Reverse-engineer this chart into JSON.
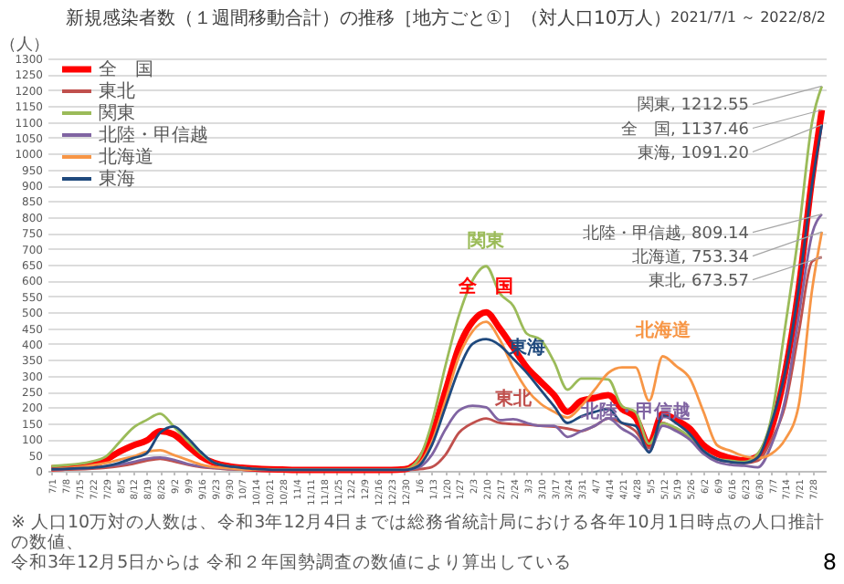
{
  "chart_data": {
    "type": "line",
    "title": "新規感染者数（１週間移動合計）の推移［地方ごと①］（対人口10万人）",
    "subtitle": "2021/7/1 ～ 2022/8/2",
    "ylabel": "（人）",
    "x": [
      "2021-07-01",
      "2021-07-08",
      "2021-07-15",
      "2021-07-22",
      "2021-07-29",
      "2021-08-05",
      "2021-08-12",
      "2021-08-19",
      "2021-08-26",
      "2021-09-02",
      "2021-09-09",
      "2021-09-16",
      "2021-09-23",
      "2021-09-30",
      "2021-10-07",
      "2021-10-14",
      "2021-10-21",
      "2021-10-28",
      "2021-11-04",
      "2021-11-11",
      "2021-11-18",
      "2021-11-25",
      "2021-12-02",
      "2021-12-09",
      "2021-12-16",
      "2021-12-23",
      "2021-12-30",
      "2022-01-06",
      "2022-01-13",
      "2022-01-20",
      "2022-01-27",
      "2022-02-03",
      "2022-02-10",
      "2022-02-17",
      "2022-02-24",
      "2022-03-03",
      "2022-03-10",
      "2022-03-17",
      "2022-03-24",
      "2022-03-31",
      "2022-04-07",
      "2022-04-14",
      "2022-04-21",
      "2022-04-28",
      "2022-05-05",
      "2022-05-12",
      "2022-05-19",
      "2022-05-26",
      "2022-06-02",
      "2022-06-09",
      "2022-06-16",
      "2022-06-23",
      "2022-06-30",
      "2022-07-07",
      "2022-07-14",
      "2022-07-21",
      "2022-07-28",
      "2022-08-02"
    ],
    "series": [
      {
        "name": "全　国",
        "color": "#ff0000",
        "values": [
          8,
          10,
          14,
          20,
          35,
          60,
          80,
          95,
          125,
          115,
          80,
          45,
          25,
          15,
          10,
          7,
          5,
          4,
          3,
          3,
          3,
          3,
          3,
          3,
          3,
          3,
          5,
          30,
          110,
          250,
          390,
          470,
          500,
          449,
          388,
          326,
          282,
          239,
          186,
          221,
          230,
          239,
          195,
          168,
          85,
          180,
          160,
          133,
          81,
          54,
          40,
          33,
          46,
          133,
          309,
          572,
          923,
          1137.46
        ]
      },
      {
        "name": "東北",
        "color": "#c0504d",
        "values": [
          3,
          4,
          5,
          7,
          10,
          15,
          22,
          32,
          38,
          30,
          20,
          12,
          8,
          5,
          4,
          3,
          3,
          3,
          3,
          3,
          3,
          3,
          3,
          3,
          3,
          3,
          3,
          5,
          12,
          50,
          120,
          150,
          165,
          151,
          147,
          146,
          142,
          139,
          133,
          125,
          142,
          165,
          151,
          125,
          72,
          151,
          130,
          107,
          63,
          37,
          28,
          25,
          32,
          98,
          204,
          432,
          660,
          673.57
        ]
      },
      {
        "name": "関東",
        "color": "#9bbb59",
        "values": [
          15,
          18,
          22,
          30,
          45,
          90,
          135,
          160,
          180,
          140,
          95,
          55,
          25,
          15,
          10,
          6,
          5,
          4,
          4,
          4,
          4,
          4,
          4,
          4,
          4,
          4,
          5,
          35,
          150,
          330,
          490,
          600,
          645,
          560,
          520,
          432,
          414,
          344,
          256,
          291,
          291,
          288,
          204,
          186,
          85,
          150,
          135,
          107,
          63,
          37,
          32,
          28,
          54,
          168,
          449,
          747,
          1100,
          1212.55
        ]
      },
      {
        "name": "北陸・甲信越",
        "color": "#8064a2",
        "values": [
          5,
          6,
          8,
          10,
          15,
          20,
          28,
          38,
          42,
          35,
          22,
          14,
          10,
          6,
          5,
          4,
          3,
          3,
          3,
          3,
          3,
          3,
          3,
          3,
          3,
          3,
          3,
          10,
          50,
          130,
          190,
          205,
          200,
          160,
          163,
          151,
          142,
          142,
          107,
          125,
          142,
          165,
          133,
          107,
          63,
          142,
          125,
          98,
          54,
          28,
          19,
          16,
          11,
          81,
          221,
          484,
          747,
          809.14
        ]
      },
      {
        "name": "北海道",
        "color": "#f79646",
        "values": [
          5,
          8,
          12,
          18,
          25,
          35,
          45,
          60,
          65,
          50,
          35,
          20,
          12,
          8,
          5,
          4,
          4,
          3,
          3,
          3,
          3,
          3,
          3,
          3,
          3,
          3,
          4,
          20,
          90,
          220,
          360,
          440,
          470,
          414,
          326,
          256,
          212,
          186,
          168,
          204,
          256,
          309,
          326,
          326,
          221,
          361,
          330,
          291,
          186,
          81,
          63,
          46,
          40,
          54,
          98,
          204,
          572,
          753.34
        ]
      },
      {
        "name": "東海",
        "color": "#1f497d",
        "values": [
          5,
          6,
          8,
          10,
          15,
          25,
          40,
          55,
          120,
          140,
          105,
          60,
          25,
          15,
          10,
          6,
          4,
          3,
          3,
          3,
          3,
          3,
          3,
          3,
          3,
          3,
          3,
          15,
          80,
          200,
          320,
          400,
          415,
          396,
          353,
          309,
          256,
          204,
          151,
          172,
          186,
          195,
          151,
          142,
          58,
          175,
          150,
          116,
          63,
          37,
          28,
          25,
          42,
          151,
          309,
          572,
          905,
          1091.2
        ]
      }
    ],
    "xlim": [
      "2021-06-29",
      "2022-08-04"
    ],
    "xticks": [
      {
        "value": "2021-07-01",
        "label": "7/1"
      },
      {
        "value": "2021-07-08",
        "label": "7/8"
      },
      {
        "value": "2021-07-15",
        "label": "7/15"
      },
      {
        "value": "2021-07-22",
        "label": "7/22"
      },
      {
        "value": "2021-07-29",
        "label": "7/29"
      },
      {
        "value": "2021-08-05",
        "label": "8/5"
      },
      {
        "value": "2021-08-12",
        "label": "8/12"
      },
      {
        "value": "2021-08-19",
        "label": "8/19"
      },
      {
        "value": "2021-08-26",
        "label": "8/26"
      },
      {
        "value": "2021-09-02",
        "label": "9/2"
      },
      {
        "value": "2021-09-09",
        "label": "9/9"
      },
      {
        "value": "2021-09-16",
        "label": "9/16"
      },
      {
        "value": "2021-09-23",
        "label": "9/23"
      },
      {
        "value": "2021-09-30",
        "label": "9/30"
      },
      {
        "value": "2021-10-07",
        "label": "10/7"
      },
      {
        "value": "2021-10-14",
        "label": "10/14"
      },
      {
        "value": "2021-10-21",
        "label": "10/21"
      },
      {
        "value": "2021-10-28",
        "label": "10/28"
      },
      {
        "value": "2021-11-04",
        "label": "11/4"
      },
      {
        "value": "2021-11-11",
        "label": "11/11"
      },
      {
        "value": "2021-11-18",
        "label": "11/18"
      },
      {
        "value": "2021-11-25",
        "label": "11/25"
      },
      {
        "value": "2021-12-02",
        "label": "12/2"
      },
      {
        "value": "2021-12-09",
        "label": "12/9"
      },
      {
        "value": "2021-12-16",
        "label": "12/16"
      },
      {
        "value": "2021-12-23",
        "label": "12/23"
      },
      {
        "value": "2021-12-30",
        "label": "12/30"
      },
      {
        "value": "2022-01-06",
        "label": "1/6"
      },
      {
        "value": "2022-01-13",
        "label": "1/13"
      },
      {
        "value": "2022-01-20",
        "label": "1/20"
      },
      {
        "value": "2022-01-27",
        "label": "1/27"
      },
      {
        "value": "2022-02-03",
        "label": "2/3"
      },
      {
        "value": "2022-02-10",
        "label": "2/10"
      },
      {
        "value": "2022-02-17",
        "label": "2/17"
      },
      {
        "value": "2022-02-24",
        "label": "2/24"
      },
      {
        "value": "2022-03-03",
        "label": "3/3"
      },
      {
        "value": "2022-03-10",
        "label": "3/10"
      },
      {
        "value": "2022-03-17",
        "label": "3/17"
      },
      {
        "value": "2022-03-24",
        "label": "3/24"
      },
      {
        "value": "2022-03-31",
        "label": "3/31"
      },
      {
        "value": "2022-04-07",
        "label": "4/7"
      },
      {
        "value": "2022-04-14",
        "label": "4/14"
      },
      {
        "value": "2022-04-21",
        "label": "4/21"
      },
      {
        "value": "2022-04-28",
        "label": "4/28"
      },
      {
        "value": "2022-05-05",
        "label": "5/5"
      },
      {
        "value": "2022-05-12",
        "label": "5/12"
      },
      {
        "value": "2022-05-19",
        "label": "5/19"
      },
      {
        "value": "2022-05-26",
        "label": "5/26"
      },
      {
        "value": "2022-06-02",
        "label": "6/2"
      },
      {
        "value": "2022-06-09",
        "label": "6/9"
      },
      {
        "value": "2022-06-16",
        "label": "6/16"
      },
      {
        "value": "2022-06-23",
        "label": "6/23"
      },
      {
        "value": "2022-06-30",
        "label": "6/30"
      },
      {
        "value": "2022-07-07",
        "label": "7/7"
      },
      {
        "value": "2022-07-14",
        "label": "7/14"
      },
      {
        "value": "2022-07-21",
        "label": "7/21"
      },
      {
        "value": "2022-07-28",
        "label": "7/28"
      }
    ],
    "ylim": [
      0,
      1300
    ],
    "yticks": [
      0,
      50,
      100,
      150,
      200,
      250,
      300,
      350,
      400,
      450,
      500,
      550,
      600,
      650,
      700,
      750,
      800,
      850,
      900,
      950,
      1000,
      1050,
      1100,
      1150,
      1200,
      1250,
      1300
    ],
    "grid": "y",
    "legend": "top left",
    "marker": "none",
    "line_style": "solid",
    "annotations": [
      {
        "text": "関東, 1212.55",
        "x": "2022-08-02",
        "y": 1212.55
      },
      {
        "text": "全　国, 1137.46",
        "x": "2022-08-02",
        "y": 1137.46
      },
      {
        "text": "東海, 1091.20",
        "x": "2022-08-02",
        "y": 1091.2
      },
      {
        "text": "北陸・甲信越, 809.14",
        "x": "2022-08-02",
        "y": 809.14
      },
      {
        "text": "北海道, 753.34",
        "x": "2022-08-02",
        "y": 753.34
      },
      {
        "text": "東北, 673.57",
        "x": "2022-08-02",
        "y": 673.57
      },
      {
        "text": "関東",
        "x": "2022-02-10",
        "y": 645
      },
      {
        "text": "全　国",
        "x": "2022-02-10",
        "y": 500
      },
      {
        "text": "東海",
        "x": "2022-03-03",
        "y": 309
      },
      {
        "text": "北海道",
        "x": "2022-05-12",
        "y": 361
      },
      {
        "text": "東北",
        "x": "2022-02-24",
        "y": 147
      },
      {
        "text": "北陸・甲信越",
        "x": "2022-04-28",
        "y": 107
      },
      "※ 人口10万対の人数は、令和3年12月4日までは総務省統計局における各年10月1日時点の人口推計の数値、",
      "令和3年12月5日からは 令和２年国勢調査の数値により算出している",
      "8"
    ]
  }
}
